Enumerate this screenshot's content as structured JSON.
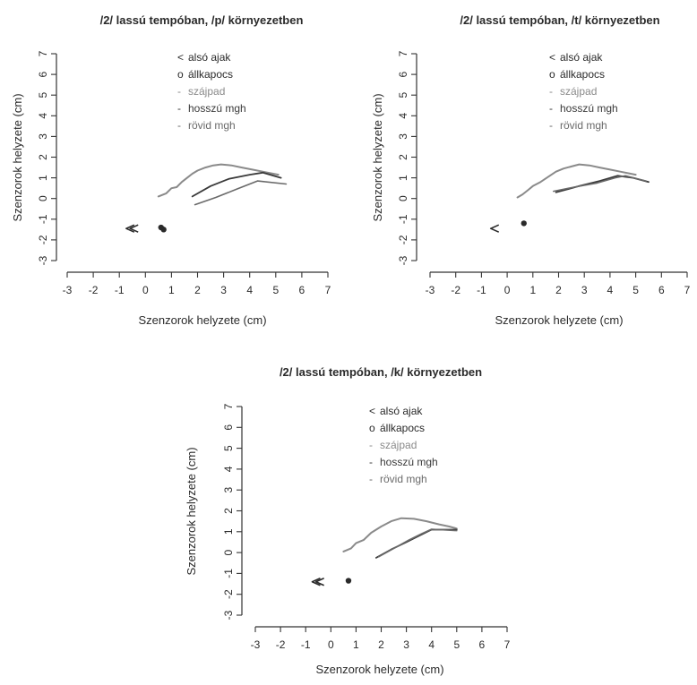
{
  "figure": {
    "colors": {
      "ink": "#2a2a2a",
      "axis": "#333333",
      "palate": "#8a8a8a",
      "long_vowel": "#3a3a3a",
      "short_vowel": "#6a6a6a",
      "background": "#ffffff"
    }
  },
  "chart_data": [
    {
      "type": "scatter",
      "title": "/2/ lassú tempóban, /p/ környezetben",
      "xlabel": "Szenzorok helyzete (cm)",
      "ylabel": "Szenzorok helyzete (cm)",
      "xlim": [
        -3,
        7
      ],
      "ylim": [
        -3,
        7
      ],
      "xticks": [
        -3,
        -2,
        -1,
        0,
        1,
        2,
        3,
        4,
        5,
        6,
        7
      ],
      "yticks": [
        -3,
        -2,
        -1,
        0,
        1,
        2,
        3,
        4,
        5,
        6,
        7
      ],
      "grid": false,
      "legend_position": "top-center",
      "legend": [
        {
          "marker": "<",
          "label": "alsó ajak",
          "style": "symbol"
        },
        {
          "marker": "o",
          "label": "állkapocs",
          "style": "symbol"
        },
        {
          "marker": "-",
          "label": "szájpad",
          "style": "palate"
        },
        {
          "marker": "-",
          "label": "hosszú mgh",
          "style": "long_vowel"
        },
        {
          "marker": "-",
          "label": "rövid mgh",
          "style": "short_vowel"
        }
      ],
      "series": [
        {
          "key": "lower_lip",
          "kind": "marker",
          "marker": "<",
          "points": [
            [
              -0.6,
              -1.45
            ],
            [
              -0.45,
              -1.45
            ]
          ]
        },
        {
          "key": "jaw",
          "kind": "marker",
          "marker": "o",
          "points": [
            [
              0.6,
              -1.4
            ],
            [
              0.7,
              -1.5
            ]
          ]
        },
        {
          "key": "palate",
          "kind": "line",
          "points": [
            [
              0.5,
              0.1
            ],
            [
              0.8,
              0.25
            ],
            [
              1.0,
              0.5
            ],
            [
              1.2,
              0.55
            ],
            [
              1.4,
              0.8
            ],
            [
              1.6,
              1.0
            ],
            [
              1.8,
              1.2
            ],
            [
              2.0,
              1.35
            ],
            [
              2.3,
              1.5
            ],
            [
              2.6,
              1.6
            ],
            [
              2.9,
              1.65
            ],
            [
              3.3,
              1.6
            ],
            [
              3.7,
              1.5
            ],
            [
              4.1,
              1.4
            ],
            [
              4.5,
              1.3
            ],
            [
              4.9,
              1.2
            ],
            [
              5.1,
              1.15
            ]
          ]
        },
        {
          "key": "long_vowel",
          "kind": "line",
          "points": [
            [
              1.8,
              0.1
            ],
            [
              2.5,
              0.6
            ],
            [
              3.2,
              0.95
            ],
            [
              4.0,
              1.15
            ],
            [
              4.5,
              1.25
            ],
            [
              5.2,
              1.0
            ]
          ]
        },
        {
          "key": "short_vowel",
          "kind": "line",
          "points": [
            [
              1.9,
              -0.3
            ],
            [
              2.7,
              0.05
            ],
            [
              3.5,
              0.45
            ],
            [
              4.3,
              0.85
            ],
            [
              5.4,
              0.7
            ]
          ]
        }
      ]
    },
    {
      "type": "scatter",
      "title": "/2/ lassú tempóban, /t/ környezetben",
      "xlabel": "Szenzorok helyzete (cm)",
      "ylabel": "Szenzorok helyzete (cm)",
      "xlim": [
        -3,
        7
      ],
      "ylim": [
        -3,
        7
      ],
      "xticks": [
        -3,
        -2,
        -1,
        0,
        1,
        2,
        3,
        4,
        5,
        6,
        7
      ],
      "yticks": [
        -3,
        -2,
        -1,
        0,
        1,
        2,
        3,
        4,
        5,
        6,
        7
      ],
      "grid": false,
      "legend_position": "top-center",
      "legend": [
        {
          "marker": "<",
          "label": "alsó ajak",
          "style": "symbol"
        },
        {
          "marker": "o",
          "label": "állkapocs",
          "style": "symbol"
        },
        {
          "marker": "-",
          "label": "szájpad",
          "style": "palate"
        },
        {
          "marker": "-",
          "label": "hosszú mgh",
          "style": "long_vowel"
        },
        {
          "marker": "-",
          "label": "rövid mgh",
          "style": "short_vowel"
        }
      ],
      "series": [
        {
          "key": "lower_lip",
          "kind": "marker",
          "marker": "<",
          "points": [
            [
              -0.5,
              -1.45
            ]
          ]
        },
        {
          "key": "jaw",
          "kind": "marker",
          "marker": "o",
          "points": [
            [
              0.65,
              -1.2
            ]
          ]
        },
        {
          "key": "palate",
          "kind": "line",
          "points": [
            [
              0.4,
              0.05
            ],
            [
              0.6,
              0.2
            ],
            [
              0.8,
              0.4
            ],
            [
              1.0,
              0.6
            ],
            [
              1.3,
              0.8
            ],
            [
              1.6,
              1.05
            ],
            [
              1.9,
              1.3
            ],
            [
              2.2,
              1.45
            ],
            [
              2.5,
              1.55
            ],
            [
              2.8,
              1.65
            ],
            [
              3.2,
              1.6
            ],
            [
              3.6,
              1.5
            ],
            [
              4.0,
              1.4
            ],
            [
              4.4,
              1.3
            ],
            [
              4.8,
              1.2
            ],
            [
              5.0,
              1.15
            ]
          ]
        },
        {
          "key": "long_vowel",
          "kind": "line",
          "points": [
            [
              1.9,
              0.3
            ],
            [
              2.8,
              0.6
            ],
            [
              3.6,
              0.85
            ],
            [
              4.3,
              1.1
            ],
            [
              4.9,
              1.0
            ],
            [
              5.5,
              0.8
            ]
          ]
        },
        {
          "key": "short_vowel",
          "kind": "line",
          "points": [
            [
              1.8,
              0.35
            ],
            [
              2.6,
              0.55
            ],
            [
              3.5,
              0.75
            ],
            [
              4.2,
              1.0
            ],
            [
              4.6,
              1.1
            ],
            [
              5.4,
              0.85
            ]
          ]
        }
      ]
    },
    {
      "type": "scatter",
      "title": "/2/ lassú tempóban, /k/ környezetben",
      "xlabel": "Szenzorok helyzete (cm)",
      "ylabel": "Szenzorok helyzete (cm)",
      "xlim": [
        -3,
        7
      ],
      "ylim": [
        -3,
        7
      ],
      "xticks": [
        -3,
        -2,
        -1,
        0,
        1,
        2,
        3,
        4,
        5,
        6,
        7
      ],
      "yticks": [
        -3,
        -2,
        -1,
        0,
        1,
        2,
        3,
        4,
        5,
        6,
        7
      ],
      "grid": false,
      "legend_position": "top-center",
      "legend": [
        {
          "marker": "<",
          "label": "alsó ajak",
          "style": "symbol"
        },
        {
          "marker": "o",
          "label": "állkapocs",
          "style": "symbol"
        },
        {
          "marker": "-",
          "label": "szájpad",
          "style": "palate"
        },
        {
          "marker": "-",
          "label": "hosszú mgh",
          "style": "long_vowel"
        },
        {
          "marker": "-",
          "label": "rövid mgh",
          "style": "short_vowel"
        }
      ],
      "series": [
        {
          "key": "lower_lip",
          "kind": "marker",
          "marker": "<",
          "points": [
            [
              -0.6,
              -1.4
            ],
            [
              -0.45,
              -1.4
            ]
          ]
        },
        {
          "key": "jaw",
          "kind": "marker",
          "marker": "o",
          "points": [
            [
              0.7,
              -1.35
            ]
          ]
        },
        {
          "key": "palate",
          "kind": "line",
          "points": [
            [
              0.5,
              0.05
            ],
            [
              0.8,
              0.2
            ],
            [
              1.0,
              0.45
            ],
            [
              1.3,
              0.6
            ],
            [
              1.6,
              0.95
            ],
            [
              2.0,
              1.25
            ],
            [
              2.4,
              1.5
            ],
            [
              2.8,
              1.65
            ],
            [
              3.3,
              1.62
            ],
            [
              3.8,
              1.5
            ],
            [
              4.3,
              1.35
            ],
            [
              4.7,
              1.25
            ],
            [
              5.0,
              1.15
            ]
          ]
        },
        {
          "key": "long_vowel",
          "kind": "line",
          "points": [
            [
              1.8,
              -0.25
            ],
            [
              2.4,
              0.15
            ],
            [
              3.0,
              0.5
            ],
            [
              3.5,
              0.8
            ],
            [
              4.0,
              1.1
            ],
            [
              5.0,
              1.1
            ]
          ]
        },
        {
          "key": "short_vowel",
          "kind": "line",
          "points": [
            [
              1.9,
              -0.2
            ],
            [
              2.5,
              0.2
            ],
            [
              3.1,
              0.6
            ],
            [
              3.6,
              0.9
            ],
            [
              4.0,
              1.12
            ],
            [
              5.0,
              1.05
            ]
          ]
        }
      ]
    }
  ]
}
